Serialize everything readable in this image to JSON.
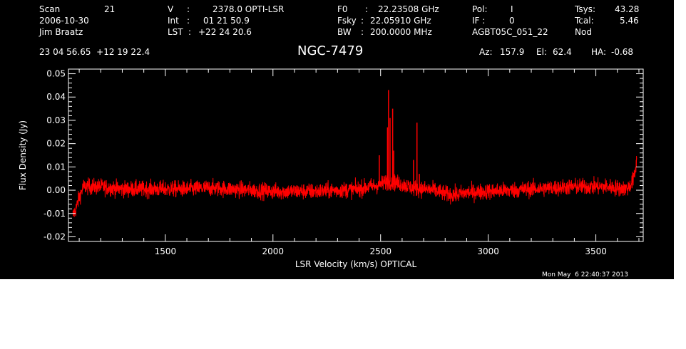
{
  "header": {
    "scan_label": "Scan",
    "scan_value": "21",
    "date": "2006-10-30",
    "observer": "Jim Braatz",
    "v_label": "V",
    "v_sep": ":",
    "v_value": "2378.0 OPTI-LSR",
    "int_label": "Int",
    "int_sep": ":",
    "int_value": "01 21 50.9",
    "lst_label": "LST",
    "lst_sep": ":",
    "lst_value": "+22 24 20.6",
    "f0_label": "F0",
    "f0_sep": ":",
    "f0_value": "22.23508 GHz",
    "fsky_label": "Fsky",
    "fsky_sep": ":",
    "fsky_value": "22.05910 GHz",
    "bw_label": "BW",
    "bw_sep": ":",
    "bw_value": "200.0000 MHz",
    "pol_label": "Pol:",
    "pol_value": "I",
    "if_label": "IF :",
    "if_value": "0",
    "project": "AGBT05C_051_22",
    "tsys_label": "Tsys:",
    "tsys_value": "43.28",
    "tcal_label": "Tcal:",
    "tcal_value": "5.46",
    "mode": "Nod",
    "coords": "23 04 56.65  +12 19 22.4",
    "source": "NGC-7479",
    "az_label": "Az:",
    "az_value": "157.9",
    "el_label": "El:",
    "el_value": "62.4",
    "ha_label": "HA:",
    "ha_value": "-0.68",
    "timestamp": "Mon May  6 22:40:37 2013"
  },
  "chart_data": {
    "type": "line",
    "xlabel": "LSR Velocity (km/s) OPTICAL",
    "ylabel": "Flux Density (Jy)",
    "xlim": [
      1050,
      3720
    ],
    "ylim": [
      -0.022,
      0.052
    ],
    "x_ticks": [
      1500,
      2000,
      2500,
      3000,
      3500
    ],
    "y_ticks": [
      -0.02,
      -0.01,
      0.0,
      0.01,
      0.02,
      0.03,
      0.04,
      0.05
    ],
    "y_tick_labels": [
      "-0.02",
      "-0.01",
      "0.00",
      "0.01",
      "0.02",
      "0.03",
      "0.04",
      "0.05"
    ],
    "line_color": "#ff0000",
    "axis_color": "#ffffff",
    "noise_rms": 0.0025,
    "series": [
      {
        "x": [
          1070,
          1085,
          1100,
          1120,
          1150,
          1200,
          1300,
          1400,
          1500,
          1600,
          1700,
          1800,
          1900,
          2000,
          2100,
          2200,
          2300,
          2400,
          2450,
          2480,
          2500,
          2520,
          2560,
          2600,
          2650,
          2700,
          2750,
          2800,
          2850,
          2900,
          3000,
          3100,
          3200,
          3300,
          3400,
          3500,
          3550,
          3600,
          3640,
          3660,
          3680,
          3690
        ],
        "y": [
          -0.011,
          -0.008,
          -0.003,
          0.0015,
          0.0015,
          0.0015,
          0.0005,
          0.0005,
          0.0005,
          0.0005,
          0.001,
          0.0005,
          0.0,
          -0.0005,
          -0.0005,
          -0.0005,
          0.0,
          0.0005,
          0.0015,
          0.002,
          0.0025,
          0.0035,
          0.0035,
          0.0025,
          0.001,
          0.0005,
          0.0,
          -0.0015,
          -0.002,
          -0.001,
          -0.0005,
          0.0,
          0.0005,
          0.001,
          0.0015,
          0.0015,
          0.0015,
          0.001,
          0.0005,
          0.002,
          0.006,
          0.013
        ]
      }
    ],
    "spikes": [
      {
        "x": 2494,
        "y": 0.015
      },
      {
        "x": 2532,
        "y": 0.027
      },
      {
        "x": 2537,
        "y": 0.043
      },
      {
        "x": 2544,
        "y": 0.031
      },
      {
        "x": 2556,
        "y": 0.035
      },
      {
        "x": 2561,
        "y": 0.017
      },
      {
        "x": 2653,
        "y": 0.013
      },
      {
        "x": 2669,
        "y": 0.029
      },
      {
        "x": 2680,
        "y": 0.007
      }
    ]
  }
}
